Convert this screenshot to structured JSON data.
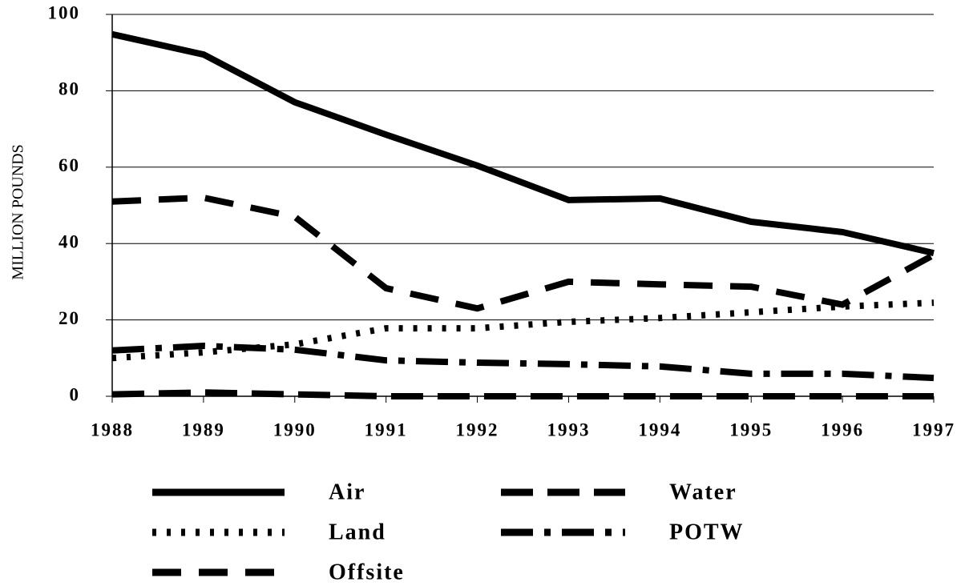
{
  "chart_data": {
    "type": "line",
    "ylabel": "MILLION POUNDS",
    "x": [
      1988,
      1989,
      1990,
      1991,
      1992,
      1993,
      1994,
      1995,
      1996,
      1997
    ],
    "xlim": [
      1988,
      1997
    ],
    "xticks": [
      1988,
      1989,
      1990,
      1991,
      1992,
      1993,
      1994,
      1995,
      1996,
      1997
    ],
    "ylim": [
      0,
      100
    ],
    "yticks": [
      0,
      20,
      40,
      60,
      80,
      100
    ],
    "grid": true,
    "series": [
      {
        "name": "Air",
        "color": "#000000",
        "dash": "none",
        "values": [
          94.8,
          89.5,
          77,
          68.5,
          60.4,
          51.4,
          51.8,
          45.7,
          43,
          37.5
        ]
      },
      {
        "name": "Water",
        "color": "#000000",
        "dash": "40 18",
        "values": [
          0.5,
          1,
          0.5,
          0,
          0,
          0,
          0,
          0,
          0,
          0
        ]
      },
      {
        "name": "Land",
        "color": "#000000",
        "dash": "5 13",
        "values": [
          10,
          11.5,
          13.6,
          17.8,
          17.8,
          19.5,
          20.5,
          22,
          23.5,
          24.5
        ]
      },
      {
        "name": "POTW",
        "color": "#000000",
        "dash": "40 14 8 14",
        "values": [
          12,
          13.2,
          12.2,
          9.4,
          8.8,
          8.4,
          7.8,
          5.9,
          5.9,
          4.8
        ]
      },
      {
        "name": "Offsite",
        "color": "#000000",
        "dash": "36 22",
        "values": [
          51,
          52,
          47,
          28.3,
          23,
          30,
          29.3,
          28.7,
          24,
          37
        ]
      }
    ]
  }
}
